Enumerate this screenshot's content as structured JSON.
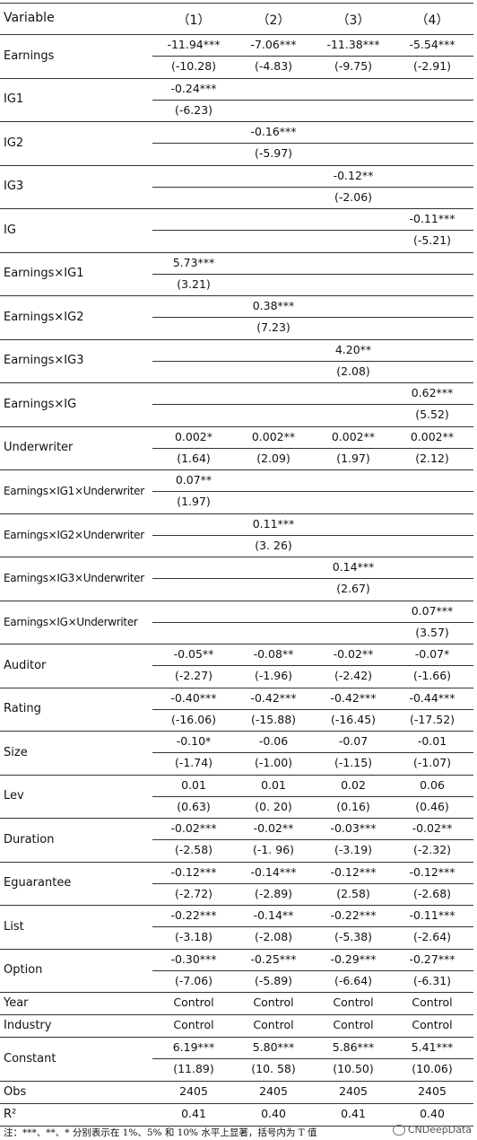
{
  "header": {
    "variable": "Variable",
    "cols": [
      "（1）",
      "（2）",
      "（3）",
      "（4）"
    ]
  },
  "rows": [
    {
      "name": "Earnings",
      "coef": [
        "-11.94***",
        "-7.06***",
        "-11.38***",
        "-5.54***"
      ],
      "t": [
        "(-10.28)",
        "(-4.83)",
        "(-9.75)",
        "(-2.91)"
      ]
    },
    {
      "name": "IG1",
      "coef": [
        "-0.24***",
        "",
        "",
        ""
      ],
      "t": [
        "(-6.23)",
        "",
        "",
        ""
      ]
    },
    {
      "name": "IG2",
      "coef": [
        "",
        "-0.16***",
        "",
        ""
      ],
      "t": [
        "",
        "(-5.97)",
        "",
        ""
      ]
    },
    {
      "name": "IG3",
      "coef": [
        "",
        "",
        "-0.12**",
        ""
      ],
      "t": [
        "",
        "",
        "(-2.06)",
        ""
      ]
    },
    {
      "name": "IG",
      "coef": [
        "",
        "",
        "",
        "-0.11***"
      ],
      "t": [
        "",
        "",
        "",
        "(-5.21)"
      ]
    },
    {
      "name": "Earnings×IG1",
      "coef": [
        "5.73***",
        "",
        "",
        ""
      ],
      "t": [
        "(3.21)",
        "",
        "",
        ""
      ]
    },
    {
      "name": "Earnings×IG2",
      "coef": [
        "",
        "0.38***",
        "",
        ""
      ],
      "t": [
        "",
        "(7.23)",
        "",
        ""
      ]
    },
    {
      "name": "Earnings×IG3",
      "coef": [
        "",
        "",
        "4.20**",
        ""
      ],
      "t": [
        "",
        "",
        "(2.08)",
        ""
      ]
    },
    {
      "name": "Earnings×IG",
      "coef": [
        "",
        "",
        "",
        "0.62***"
      ],
      "t": [
        "",
        "",
        "",
        "(5.52)"
      ]
    },
    {
      "name": "Underwriter",
      "coef": [
        "0.002*",
        "0.002**",
        "0.002**",
        "0.002**"
      ],
      "t": [
        "(1.64)",
        "(2.09)",
        "(1.97)",
        "(2.12)"
      ]
    },
    {
      "name": "Earnings×IG1×Underwriter",
      "small": true,
      "coef": [
        "0.07**",
        "",
        "",
        ""
      ],
      "t": [
        "(1.97)",
        "",
        "",
        ""
      ]
    },
    {
      "name": "Earnings×IG2×Underwriter",
      "small": true,
      "coef": [
        "",
        "0.11***",
        "",
        ""
      ],
      "t": [
        "",
        "(3. 26)",
        "",
        ""
      ]
    },
    {
      "name": "Earnings×IG3×Underwriter",
      "small": true,
      "coef": [
        "",
        "",
        "0.14***",
        ""
      ],
      "t": [
        "",
        "",
        "(2.67)",
        ""
      ]
    },
    {
      "name": "Earnings×IG×Underwriter",
      "small": true,
      "coef": [
        "",
        "",
        "",
        "0.07***"
      ],
      "t": [
        "",
        "",
        "",
        "(3.57)"
      ]
    },
    {
      "name": "Auditor",
      "coef": [
        "-0.05**",
        "-0.08**",
        "-0.02**",
        "-0.07*"
      ],
      "t": [
        "(-2.27)",
        "(-1.96)",
        "(-2.42)",
        "(-1.66)"
      ]
    },
    {
      "name": "Rating",
      "coef": [
        "-0.40***",
        "-0.42***",
        "-0.42***",
        "-0.44***"
      ],
      "t": [
        "(-16.06)",
        "(-15.88)",
        "(-16.45)",
        "(-17.52)"
      ]
    },
    {
      "name": "Size",
      "coef": [
        "-0.10*",
        "-0.06",
        "-0.07",
        "-0.01"
      ],
      "t": [
        "(-1.74)",
        "(-1.00)",
        "(-1.15)",
        "(-1.07)"
      ]
    },
    {
      "name": "Lev",
      "coef": [
        "0.01",
        "0.01",
        "0.02",
        "0.06"
      ],
      "t": [
        "(0.63)",
        "(0. 20)",
        "(0.16)",
        "(0.46)"
      ]
    },
    {
      "name": "Duration",
      "coef": [
        "-0.02***",
        "-0.02**",
        "-0.03***",
        "-0.02**"
      ],
      "t": [
        "(-2.58)",
        "(-1. 96)",
        "(-3.19)",
        "(-2.32)"
      ]
    },
    {
      "name": "Eguarantee",
      "coef": [
        "-0.12***",
        "-0.14***",
        "-0.12***",
        "-0.12***"
      ],
      "t": [
        "(-2.72)",
        "(-2.89)",
        "(2.58)",
        "(-2.68)"
      ]
    },
    {
      "name": "List",
      "coef": [
        "-0.22***",
        "-0.14**",
        "-0.22***",
        "-0.11***"
      ],
      "t": [
        "(-3.18)",
        "(-2.08)",
        "(-5.38)",
        "(-2.64)"
      ]
    },
    {
      "name": "Option",
      "coef": [
        "-0.30***",
        "-0.25***",
        "-0.29***",
        "-0.27***"
      ],
      "t": [
        "(-7.06)",
        "(-5.89)",
        "(-6.64)",
        "(-6.31)"
      ]
    }
  ],
  "single_rows": [
    {
      "name": "Year",
      "vals": [
        "Control",
        "Control",
        "Control",
        "Control"
      ]
    },
    {
      "name": "Industry",
      "vals": [
        "Control",
        "Control",
        "Control",
        "Control"
      ]
    }
  ],
  "constant": {
    "name": "Constant",
    "coef": [
      "6.19***",
      "5.80***",
      "5.86***",
      "5.41***"
    ],
    "t": [
      "(11.89)",
      "(10. 58)",
      "(10.50)",
      "(10.06)"
    ]
  },
  "tail_rows": [
    {
      "name": "Obs",
      "vals": [
        "2405",
        "2405",
        "2405",
        "2405"
      ]
    },
    {
      "name": "R²",
      "vals": [
        "0.41",
        "0.40",
        "0.41",
        "0.40"
      ]
    }
  ],
  "note": "注：***、**、* 分别表示在 1%、5% 和 10% 水平上显著，括号内为 T 值",
  "watermark": "CNDeepData"
}
